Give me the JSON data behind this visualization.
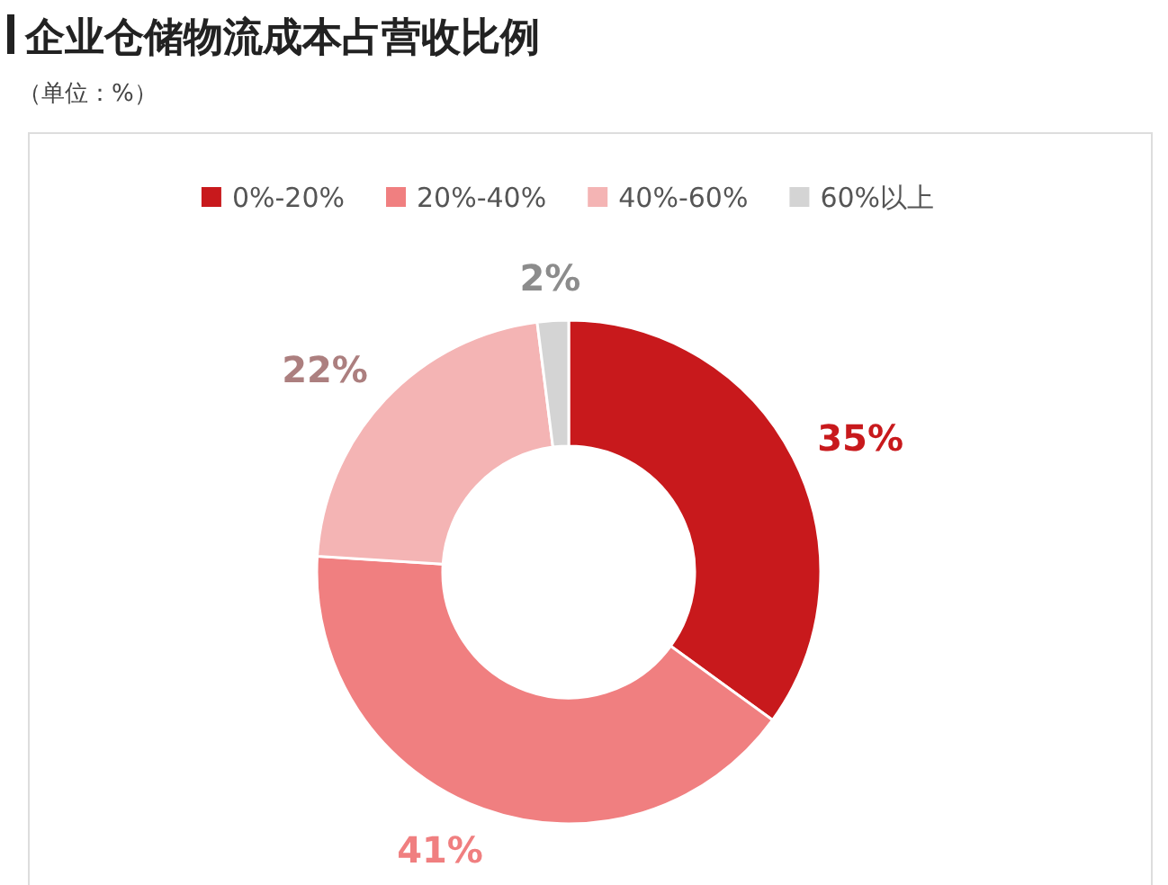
{
  "chart_data": {
    "type": "donut",
    "title": "企业仓储物流成本占营收比例",
    "subtitle": "（单位：%）",
    "categories": [
      "0%-20%",
      "20%-40%",
      "40%-60%",
      "60%以上"
    ],
    "values": [
      35,
      41,
      22,
      2
    ],
    "colors": [
      "#c8191c",
      "#f07f80",
      "#f4b4b4",
      "#d4d4d4"
    ],
    "value_labels": [
      "35%",
      "41%",
      "22%",
      "2%"
    ],
    "legend": "top"
  }
}
